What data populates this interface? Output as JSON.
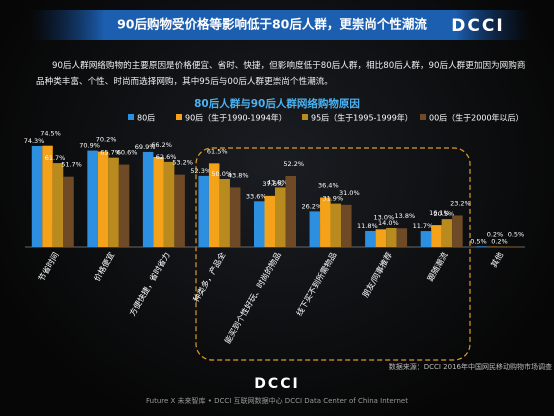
{
  "header": {
    "title": "90后购物受价格等影响低于80后人群，更崇尚个性潮流",
    "logo": "DCCI"
  },
  "summary": "90后人群网络购物的主要原因是价格便宜、省时、快捷，但影响度低于80后人群，相比80后人群，90后人群更加因为网购商品种类丰富、个性、时尚而选择网购，其中95后与00后人群更崇尚个性潮流。",
  "chart_data": {
    "type": "bar",
    "title": "80后人群与90后人群网络购物原因",
    "categories": [
      "节省时间",
      "价格便宜",
      "方便快捷，省时省力",
      "种类多，产品全",
      "能买到个性好玩、时尚的物品",
      "线下买不到所需物品",
      "朋友/同事推荐",
      "跟随潮流",
      "其他"
    ],
    "series": [
      {
        "name": "80后",
        "color": "#2d8fe0",
        "values": [
          74.3,
          70.9,
          69.9,
          52.3,
          33.6,
          26.2,
          11.8,
          11.7,
          0.5
        ],
        "value_labels": [
          "74.3%",
          "70.9%",
          "69.9%",
          "52.3%",
          "33.6%",
          "26.2%",
          "11.8%",
          "11.7%",
          "0.5%"
        ]
      },
      {
        "name": "90后（生于1990-1994年）",
        "color": "#f5a21b",
        "values": [
          74.5,
          70.2,
          66.2,
          61.5,
          37.6,
          36.4,
          13.0,
          16.1,
          0.2
        ],
        "value_labels": [
          "74.5%",
          "70.2%",
          "66.2%",
          "61.5%",
          "37.6%",
          "36.4%",
          "13.0%",
          "16.1%",
          "0.2%"
        ]
      },
      {
        "name": "95后（生于1995-1999年）",
        "color": "#b98a1e",
        "values": [
          61.7,
          65.7,
          62.6,
          50.0,
          43.8,
          31.9,
          14.0,
          20.5,
          0.2
        ],
        "value_labels": [
          "61.7%",
          "65.7%",
          "62.6%",
          "50.0%",
          "43.8%",
          "31.9%",
          "14.0%",
          "20.5%",
          "0.2%"
        ]
      },
      {
        "name": "00后（生于2000年以后）",
        "color": "#6e4a26",
        "values": [
          51.7,
          60.6,
          53.2,
          43.8,
          52.2,
          31.0,
          13.8,
          23.2,
          0.5
        ],
        "value_labels": [
          "51.7%",
          "60.6%",
          "53.2%",
          "43.8%",
          "52.2%",
          "31.0%",
          "13.8%",
          "23.2%",
          "0.5%"
        ]
      }
    ],
    "source": "数据来源：DCCI 2016年中国网民移动购物市场调查"
  },
  "footer": {
    "logo": "DCCI",
    "text": "Future X 未来智库 • DCCI 互联网数据中心 DCCI Data Center of China Internet"
  }
}
